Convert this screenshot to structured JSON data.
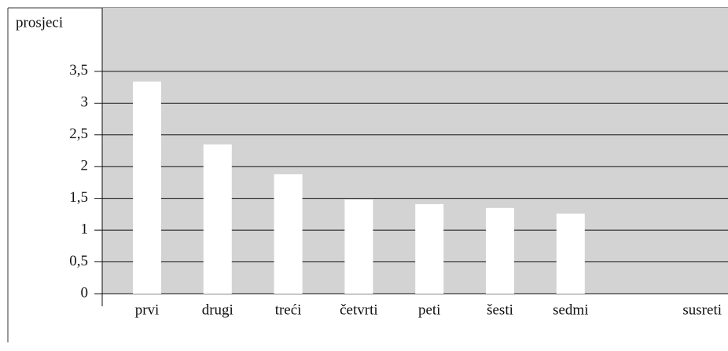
{
  "chart_data": {
    "type": "bar",
    "y_label": "prosjeci",
    "x_label": "susreti",
    "categories": [
      "prvi",
      "drugi",
      "treći",
      "četvrti",
      "peti",
      "šesti",
      "sedmi"
    ],
    "values": [
      3.34,
      2.35,
      1.88,
      1.48,
      1.41,
      1.35,
      1.26
    ],
    "color": "#ffffff",
    "background": "#d3d3d3",
    "ylim": [
      0,
      4.5
    ],
    "yticks": [
      0,
      {
        "value": 0.5,
        "label": "0,5"
      },
      1,
      {
        "value": 1.5,
        "label": "1,5"
      },
      2,
      {
        "value": 2.5,
        "label": "2,5"
      },
      3,
      {
        "value": 3.5,
        "label": "3,5"
      }
    ],
    "grid": true
  }
}
